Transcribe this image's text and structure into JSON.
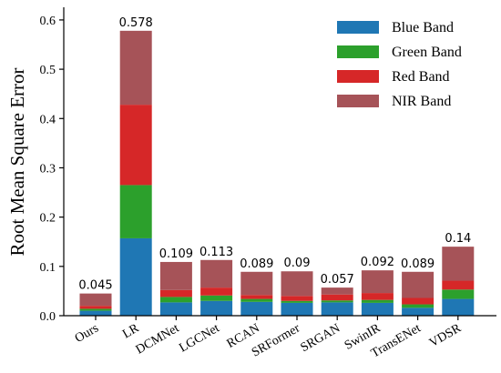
{
  "chart_data": {
    "type": "bar",
    "stacked": true,
    "title": "",
    "xlabel": "",
    "ylabel": "Root Mean Square Error",
    "ylim": [
      0,
      0.62
    ],
    "yticks": [
      "0.0",
      "0.1",
      "0.2",
      "0.3",
      "0.4",
      "0.5",
      "0.6"
    ],
    "grid": false,
    "legend_position": "top-right",
    "categories": [
      "Ours",
      "LR",
      "DCMNet",
      "LGCNet",
      "RCAN",
      "SRFormer",
      "SRGAN",
      "SwinIR",
      "TransENet",
      "VDSR"
    ],
    "totals_labels": [
      "0.045",
      "0.578",
      "0.109",
      "0.113",
      "0.089",
      "0.09",
      "0.057",
      "0.092",
      "0.089",
      "0.14"
    ],
    "series": [
      {
        "name": "Blue Band",
        "color": "#1f77b4",
        "values": [
          0.01,
          0.157,
          0.027,
          0.03,
          0.028,
          0.026,
          0.027,
          0.026,
          0.016,
          0.034
        ]
      },
      {
        "name": "Green Band",
        "color": "#2ca02c",
        "values": [
          0.004,
          0.108,
          0.011,
          0.011,
          0.006,
          0.004,
          0.004,
          0.006,
          0.007,
          0.019
        ]
      },
      {
        "name": "Red Band",
        "color": "#d62728",
        "values": [
          0.006,
          0.163,
          0.014,
          0.016,
          0.008,
          0.01,
          0.012,
          0.014,
          0.013,
          0.018
        ]
      },
      {
        "name": "NIR Band",
        "color": "#a65358",
        "values": [
          0.025,
          0.15,
          0.057,
          0.056,
          0.047,
          0.05,
          0.014,
          0.046,
          0.053,
          0.069
        ]
      }
    ]
  }
}
